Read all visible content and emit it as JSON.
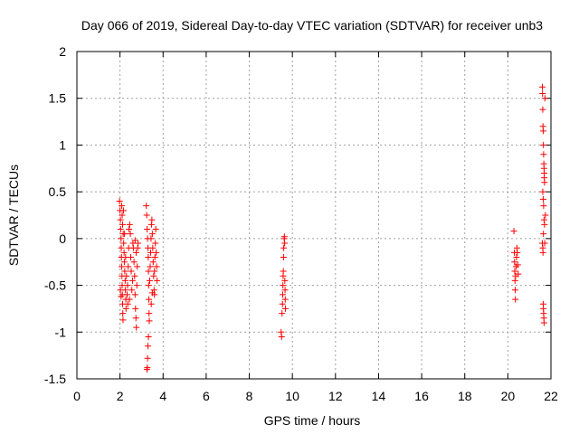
{
  "chart_data": {
    "type": "scatter",
    "title": "Day 066 of 2019, Sidereal Day-to-day VTEC variation (SDTVAR) for receiver unb3",
    "xlabel": "GPS time / hours",
    "ylabel": "SDTVAR / TECUs",
    "xlim": [
      0,
      22
    ],
    "ylim": [
      -1.5,
      2
    ],
    "xticks": [
      0,
      2,
      4,
      6,
      8,
      10,
      12,
      14,
      16,
      18,
      20,
      22
    ],
    "yticks": [
      -1.5,
      -1,
      -0.5,
      0,
      0.5,
      1,
      1.5,
      2
    ],
    "xtick_labels": [
      "0",
      "2",
      "4",
      "6",
      "8",
      "10",
      "12",
      "14",
      "16",
      "18",
      "20",
      "22"
    ],
    "ytick_labels": [
      "-1.5",
      "-1",
      "-0.5",
      "0",
      "0.5",
      "1",
      "1.5",
      "2"
    ],
    "grid": true,
    "marker": "+",
    "marker_color": "#ff0000",
    "series": [
      {
        "name": "SDTVAR",
        "points": [
          [
            1.98,
            0.4
          ],
          [
            2.0,
            0.3
          ],
          [
            2.02,
            0.2
          ],
          [
            2.03,
            0.1
          ],
          [
            2.05,
            0.0
          ],
          [
            2.06,
            -0.1
          ],
          [
            2.07,
            -0.2
          ],
          [
            2.08,
            -0.3
          ],
          [
            2.09,
            -0.4
          ],
          [
            2.1,
            -0.5
          ],
          [
            2.11,
            -0.6
          ],
          [
            2.12,
            -0.7
          ],
          [
            2.13,
            -0.8
          ],
          [
            2.14,
            -0.87
          ],
          [
            2.02,
            -0.55
          ],
          [
            2.05,
            -0.62
          ],
          [
            2.08,
            0.35
          ],
          [
            2.1,
            0.25
          ],
          [
            2.12,
            0.15
          ],
          [
            2.15,
            0.05
          ],
          [
            2.17,
            -0.05
          ],
          [
            2.19,
            -0.15
          ],
          [
            2.2,
            -0.25
          ],
          [
            2.22,
            -0.35
          ],
          [
            2.24,
            -0.45
          ],
          [
            2.25,
            -0.55
          ],
          [
            2.27,
            -0.65
          ],
          [
            2.28,
            -0.75
          ],
          [
            2.16,
            0.3
          ],
          [
            2.21,
            0.05
          ],
          [
            2.26,
            -0.2
          ],
          [
            2.3,
            -0.4
          ],
          [
            2.33,
            -0.6
          ],
          [
            2.35,
            -0.5
          ],
          [
            2.38,
            -0.3
          ],
          [
            2.4,
            -0.1
          ],
          [
            2.42,
            0.1
          ],
          [
            2.45,
            0.15
          ],
          [
            2.48,
            0.05
          ],
          [
            2.5,
            -0.2
          ],
          [
            2.52,
            -0.35
          ],
          [
            2.55,
            -0.55
          ],
          [
            2.58,
            -0.45
          ],
          [
            2.36,
            -0.7
          ],
          [
            2.44,
            -0.65
          ],
          [
            2.6,
            -0.05
          ],
          [
            2.62,
            -0.1
          ],
          [
            2.65,
            -0.25
          ],
          [
            2.68,
            -0.4
          ],
          [
            2.7,
            -0.6
          ],
          [
            2.72,
            -0.75
          ],
          [
            2.74,
            -0.85
          ],
          [
            2.76,
            -0.95
          ],
          [
            2.78,
            -0.5
          ],
          [
            2.8,
            -0.3
          ],
          [
            2.82,
            -0.1
          ],
          [
            2.84,
            -0.05
          ],
          [
            2.7,
            -0.02
          ],
          [
            2.75,
            -0.15
          ],
          [
            3.22,
            0.35
          ],
          [
            3.24,
            0.25
          ],
          [
            3.26,
            0.1
          ],
          [
            3.28,
            0.0
          ],
          [
            3.3,
            -0.1
          ],
          [
            3.31,
            -0.2
          ],
          [
            3.32,
            -0.35
          ],
          [
            3.33,
            -0.5
          ],
          [
            3.34,
            -0.65
          ],
          [
            3.35,
            -0.8
          ],
          [
            3.36,
            -0.88
          ],
          [
            3.32,
            -1.05
          ],
          [
            3.3,
            -1.15
          ],
          [
            3.28,
            -1.28
          ],
          [
            3.27,
            -1.38
          ],
          [
            3.25,
            -1.4
          ],
          [
            3.38,
            -0.45
          ],
          [
            3.4,
            -0.3
          ],
          [
            3.42,
            -0.15
          ],
          [
            3.44,
            0.0
          ],
          [
            3.46,
            0.15
          ],
          [
            3.48,
            0.2
          ],
          [
            3.5,
            0.05
          ],
          [
            3.52,
            -0.1
          ],
          [
            3.54,
            -0.25
          ],
          [
            3.56,
            -0.4
          ],
          [
            3.58,
            -0.55
          ],
          [
            3.6,
            -0.35
          ],
          [
            3.62,
            -0.2
          ],
          [
            3.64,
            -0.05
          ],
          [
            3.66,
            0.1
          ],
          [
            3.68,
            -0.15
          ],
          [
            3.7,
            -0.3
          ],
          [
            3.72,
            -0.45
          ],
          [
            3.6,
            -0.6
          ],
          [
            3.5,
            -0.58
          ],
          [
            3.45,
            -0.7
          ],
          [
            9.48,
            -1.0
          ],
          [
            9.5,
            -1.05
          ],
          [
            9.52,
            -0.8
          ],
          [
            9.54,
            -0.7
          ],
          [
            9.55,
            -0.6
          ],
          [
            9.56,
            -0.5
          ],
          [
            9.57,
            -0.4
          ],
          [
            9.58,
            -0.35
          ],
          [
            9.59,
            -0.2
          ],
          [
            9.6,
            -0.1
          ],
          [
            9.62,
            0.0
          ],
          [
            9.64,
            -0.05
          ],
          [
            9.65,
            -0.45
          ],
          [
            9.66,
            -0.55
          ],
          [
            9.67,
            -0.65
          ],
          [
            9.68,
            -0.75
          ],
          [
            9.63,
            0.02
          ],
          [
            20.28,
            0.08
          ],
          [
            20.3,
            -0.15
          ],
          [
            20.31,
            -0.25
          ],
          [
            20.32,
            -0.35
          ],
          [
            20.33,
            -0.45
          ],
          [
            20.34,
            -0.55
          ],
          [
            20.35,
            -0.65
          ],
          [
            20.36,
            -0.4
          ],
          [
            20.38,
            -0.3
          ],
          [
            20.4,
            -0.2
          ],
          [
            20.42,
            -0.1
          ],
          [
            20.44,
            -0.15
          ],
          [
            20.46,
            -0.28
          ],
          [
            20.48,
            -0.38
          ],
          [
            21.6,
            1.62
          ],
          [
            21.61,
            1.55
          ],
          [
            21.62,
            1.38
          ],
          [
            21.63,
            1.2
          ],
          [
            21.64,
            1.15
          ],
          [
            21.65,
            1.0
          ],
          [
            21.66,
            0.9
          ],
          [
            21.67,
            0.8
          ],
          [
            21.68,
            0.75
          ],
          [
            21.69,
            0.65
          ],
          [
            21.7,
            0.6
          ],
          [
            21.62,
            0.5
          ],
          [
            21.64,
            0.42
          ],
          [
            21.66,
            0.35
          ],
          [
            21.68,
            0.2
          ],
          [
            21.7,
            0.15
          ],
          [
            21.65,
            0.05
          ],
          [
            21.6,
            -0.05
          ],
          [
            21.62,
            -0.1
          ],
          [
            21.63,
            -0.15
          ],
          [
            21.64,
            -0.7
          ],
          [
            21.65,
            -0.75
          ],
          [
            21.66,
            -0.8
          ],
          [
            21.67,
            -0.85
          ],
          [
            21.68,
            -0.9
          ],
          [
            21.72,
            1.5
          ],
          [
            21.74,
            0.25
          ],
          [
            21.71,
            -0.05
          ],
          [
            21.69,
            0.7
          ]
        ]
      }
    ]
  }
}
